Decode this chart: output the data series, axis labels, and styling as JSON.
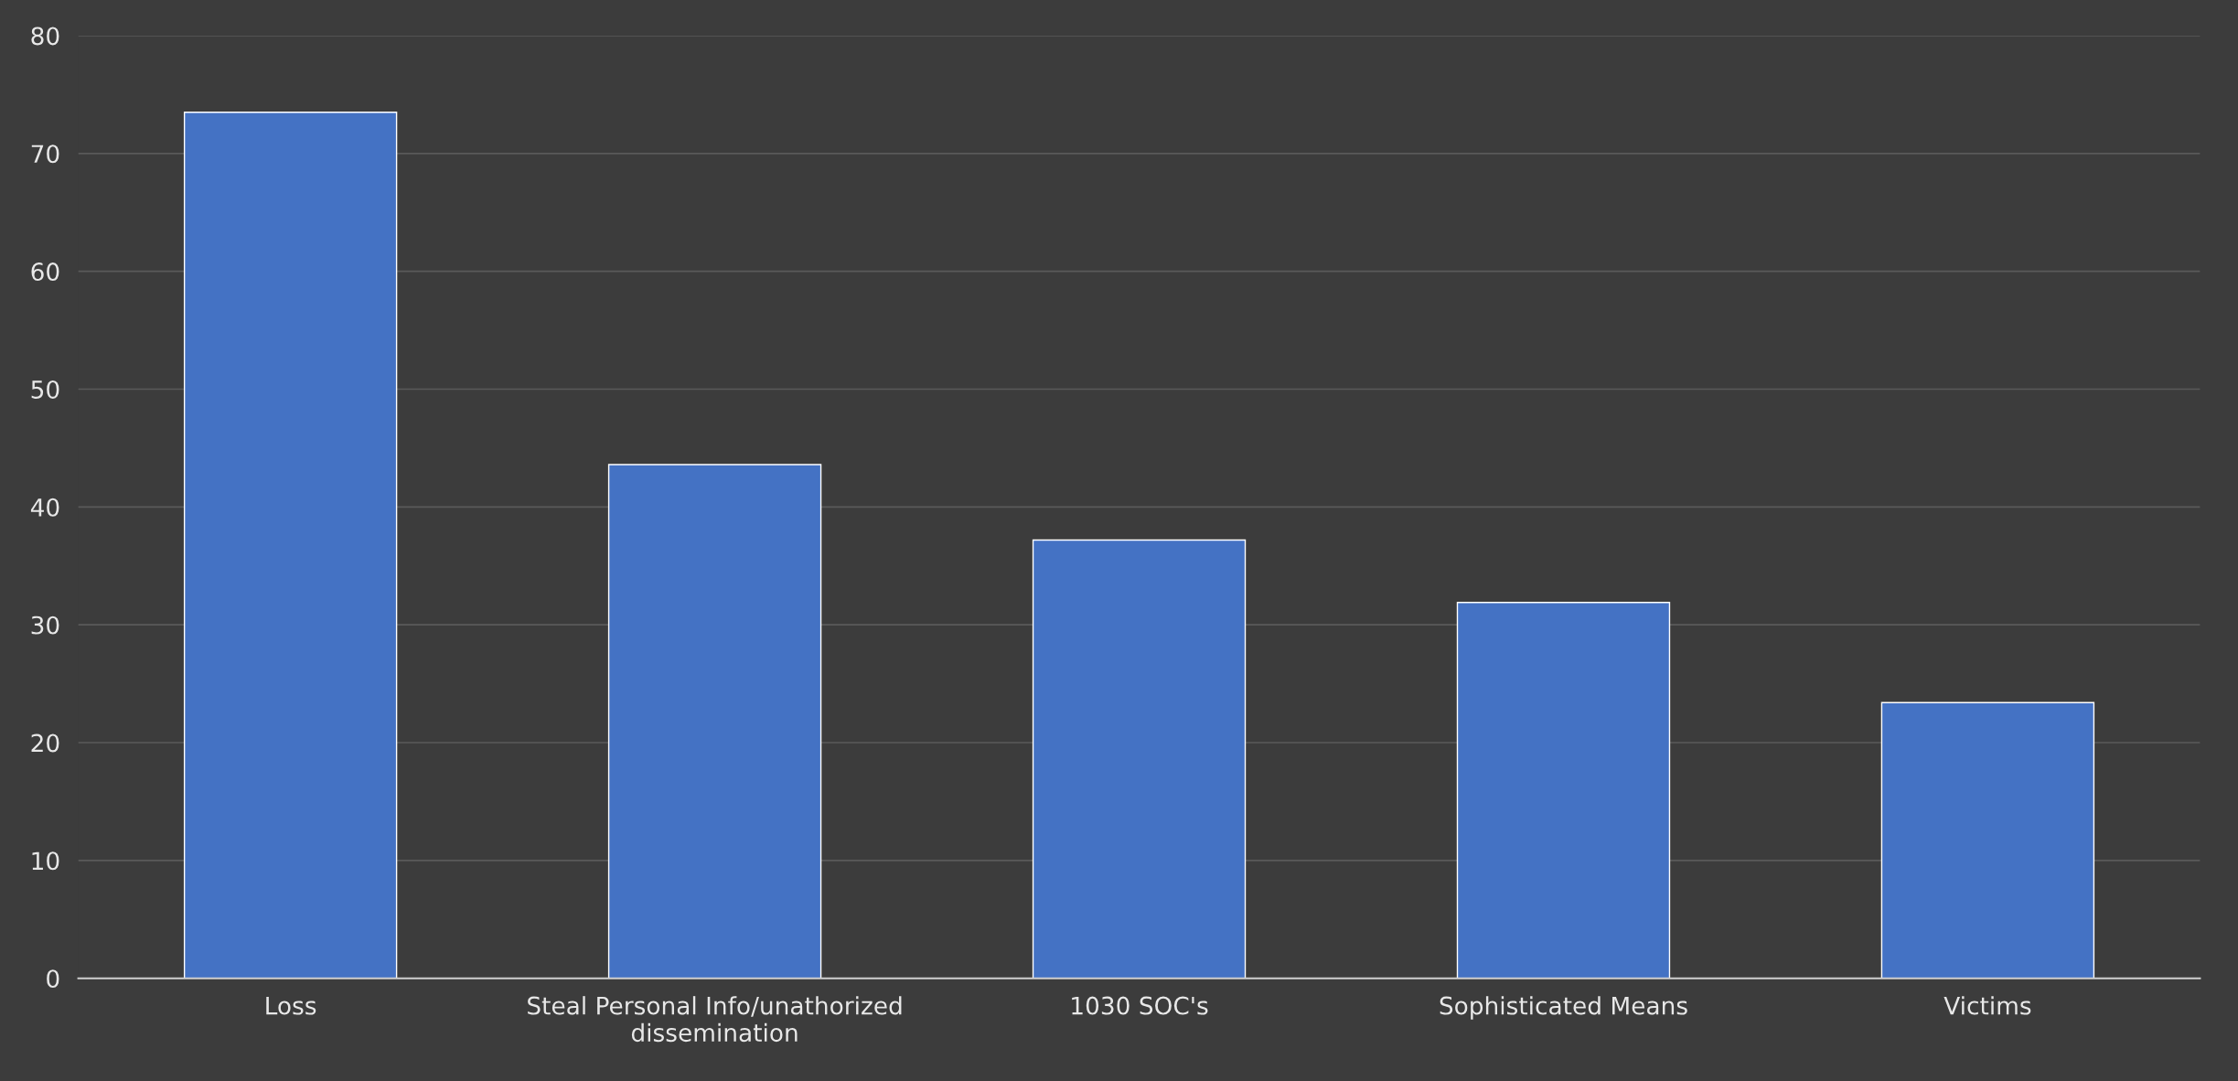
{
  "chart_data": {
    "type": "bar",
    "categories": [
      "Loss",
      "Steal Personal Info/unathorized\ndissemination",
      "1030 SOC's",
      "Sophisticated Means",
      "Victims"
    ],
    "values": [
      73.5,
      43.6,
      37.2,
      31.9,
      23.4
    ],
    "color": "#4472c4",
    "ylim": [
      0,
      80
    ],
    "yticks": [
      0,
      10,
      20,
      30,
      40,
      50,
      60,
      70,
      80
    ],
    "grid": "y"
  }
}
